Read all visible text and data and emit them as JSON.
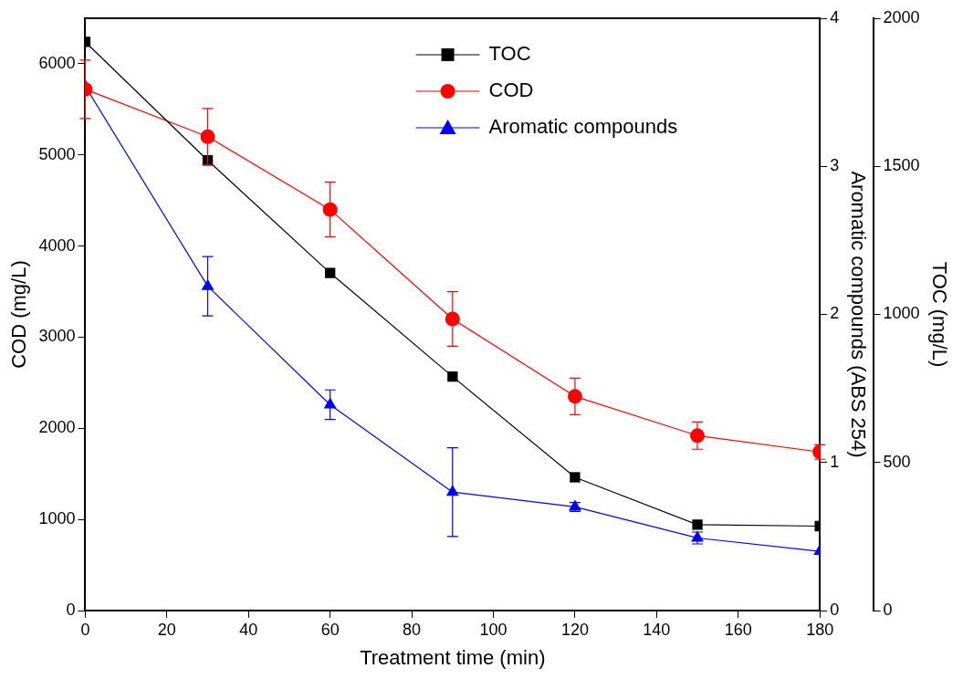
{
  "chart_data": {
    "type": "line",
    "xlabel": "Treatment time (min)",
    "ylabel": "COD (mg/L)",
    "y2label": "Aromatic compounds (ABS 254)",
    "y3label": "TOC (mg/L)",
    "x": [
      0,
      30,
      60,
      90,
      120,
      150,
      180
    ],
    "xlim": [
      0,
      180
    ],
    "xticks": [
      0,
      20,
      40,
      60,
      80,
      100,
      120,
      140,
      160,
      180
    ],
    "ylim": [
      0,
      6500
    ],
    "yticks": [
      0,
      1000,
      2000,
      3000,
      4000,
      5000,
      6000
    ],
    "y2lim": [
      0,
      4
    ],
    "y2ticks": [
      0,
      1,
      2,
      3,
      4
    ],
    "y3lim": [
      0,
      2000
    ],
    "y3ticks": [
      0,
      500,
      1000,
      1500,
      2000
    ],
    "series": [
      {
        "name": "TOC",
        "color": "#000000",
        "axis": "y3",
        "marker": "square",
        "values": [
          1920,
          1520,
          1140,
          790,
          450,
          290,
          285
        ]
      },
      {
        "name": "COD",
        "color": "#ff0000",
        "axis": "y",
        "marker": "circle",
        "values": [
          5720,
          5200,
          4400,
          3200,
          2350,
          1920,
          1740
        ],
        "errors": [
          320,
          310,
          300,
          300,
          200,
          150,
          80
        ]
      },
      {
        "name": "Aromatic compounds",
        "color": "#0000ff",
        "axis": "y2",
        "marker": "triangle",
        "values": [
          3.54,
          2.19,
          1.39,
          0.8,
          0.7,
          0.49,
          0.4
        ],
        "errors": [
          null,
          0.2,
          0.1,
          0.3,
          0.03,
          0.04,
          null
        ]
      }
    ],
    "grid": false,
    "legend": "top",
    "line_style": "solid"
  }
}
